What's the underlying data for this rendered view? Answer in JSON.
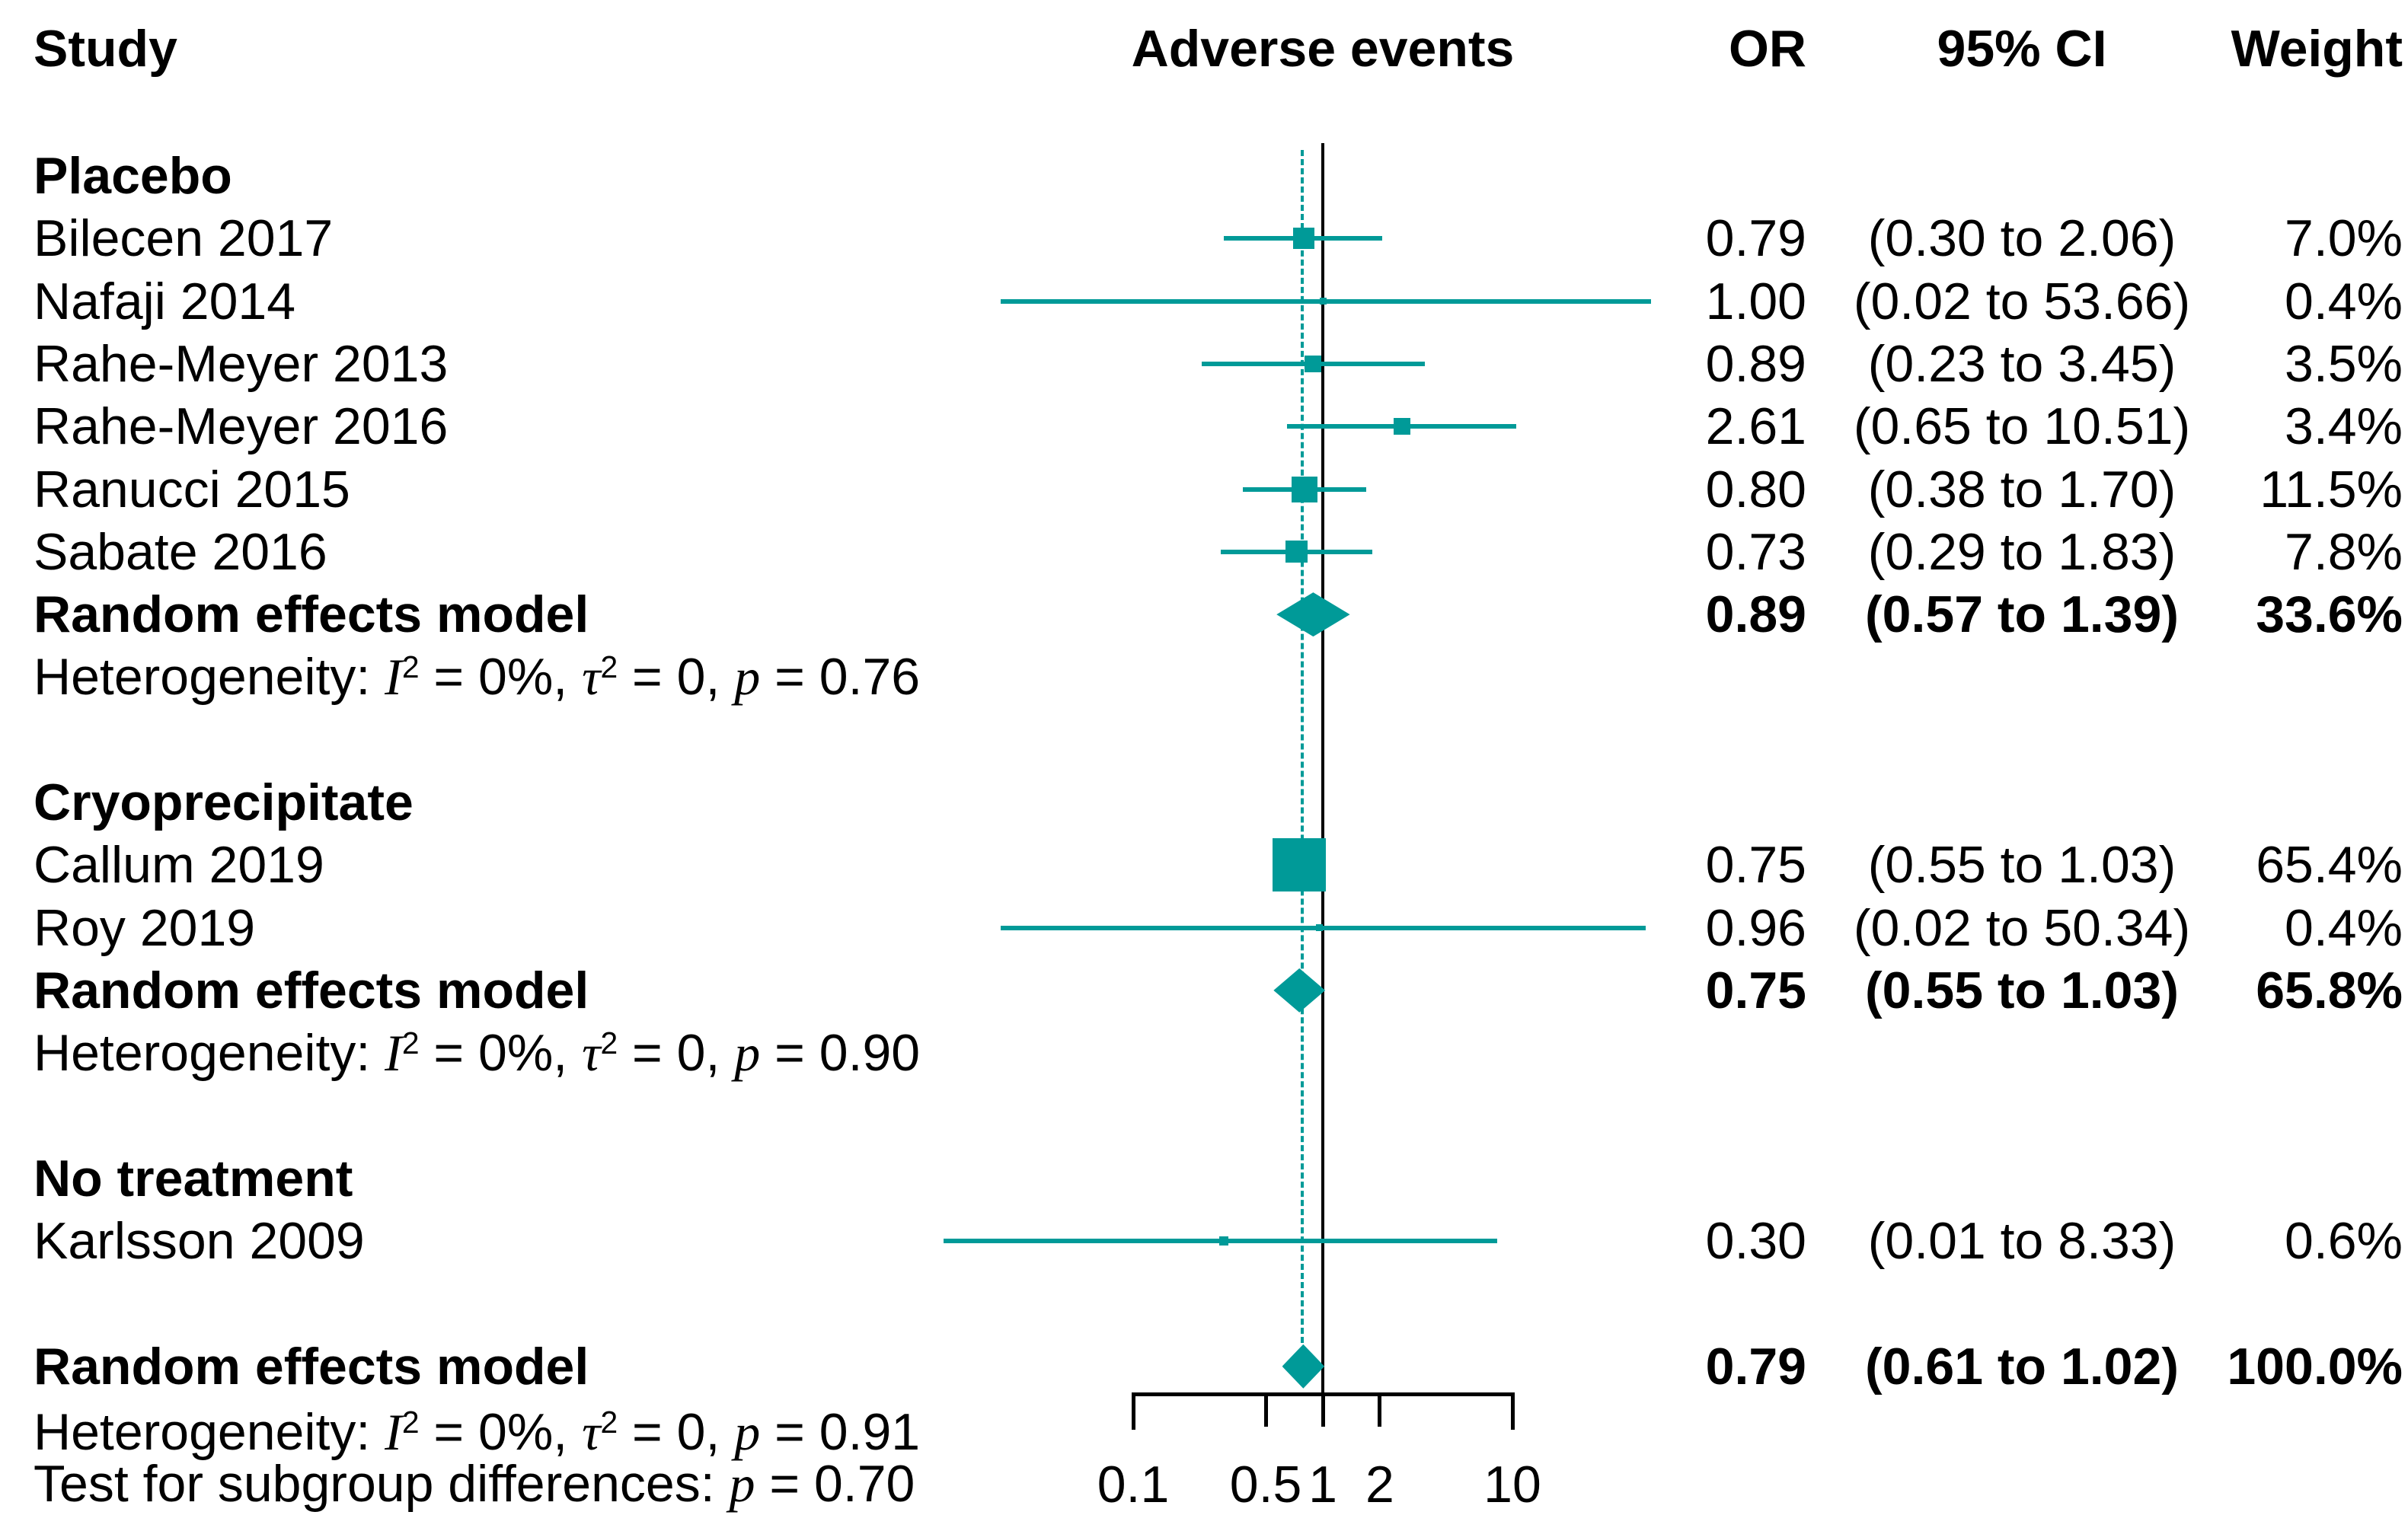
{
  "header": {
    "study": "Study",
    "adverse_events": "Adverse events",
    "or": "OR",
    "ci": "95% CI",
    "weight": "Weight"
  },
  "colors": {
    "marker_teal": "#009A98",
    "line_black": "#000000",
    "text_black": "#000000"
  },
  "chart_data": {
    "type": "forest",
    "effect_measure": "OR",
    "scale": "log",
    "xlim": [
      0.1,
      10
    ],
    "axis": {
      "tick_values": [
        0.1,
        0.5,
        1,
        2,
        10
      ],
      "tick_labels": [
        "0.1",
        "0.5",
        "1",
        "2",
        "10"
      ],
      "reference_value": 1,
      "pooled_value": 0.79
    },
    "rows": [
      {
        "kind": "group",
        "label": "Placebo"
      },
      {
        "kind": "study",
        "label": "Bilecen 2017",
        "or": 0.79,
        "ci_low": 0.3,
        "ci_high": 2.06,
        "or_text": "0.79",
        "ci_text": "(0.30 to 2.06)",
        "weight_text": "7.0%",
        "weight": 7.0,
        "marker_size": 28
      },
      {
        "kind": "study",
        "label": "Nafaji 2014",
        "or": 1.0,
        "ci_low": 0.02,
        "ci_high": 53.66,
        "or_text": "1.00",
        "ci_text": "(0.02 to 53.66)",
        "weight_text": "0.4%",
        "weight": 0.4,
        "marker_size": 9
      },
      {
        "kind": "study",
        "label": "Rahe-Meyer 2013",
        "or": 0.89,
        "ci_low": 0.23,
        "ci_high": 3.45,
        "or_text": "0.89",
        "ci_text": "(0.23 to 3.45)",
        "weight_text": "3.5%",
        "weight": 3.5,
        "marker_size": 22
      },
      {
        "kind": "study",
        "label": "Rahe-Meyer 2016",
        "or": 2.61,
        "ci_low": 0.65,
        "ci_high": 10.51,
        "or_text": "2.61",
        "ci_text": "(0.65 to 10.51)",
        "weight_text": "3.4%",
        "weight": 3.4,
        "marker_size": 22
      },
      {
        "kind": "study",
        "label": "Ranucci 2015",
        "or": 0.8,
        "ci_low": 0.38,
        "ci_high": 1.7,
        "or_text": "0.80",
        "ci_text": "(0.38 to 1.70)",
        "weight_text": "11.5%",
        "weight": 11.5,
        "marker_size": 34
      },
      {
        "kind": "study",
        "label": "Sabate 2016",
        "or": 0.73,
        "ci_low": 0.29,
        "ci_high": 1.83,
        "or_text": "0.73",
        "ci_text": "(0.29 to 1.83)",
        "weight_text": "7.8%",
        "weight": 7.8,
        "marker_size": 29
      },
      {
        "kind": "summary",
        "label": "Random effects model",
        "or": 0.89,
        "ci_low": 0.57,
        "ci_high": 1.39,
        "or_text": "0.89",
        "ci_text": "(0.57 to 1.39)",
        "weight_text": "33.6%"
      },
      {
        "kind": "note",
        "segments": [
          {
            "t": "Heterogeneity: "
          },
          {
            "t": "I",
            "i": true
          },
          {
            "t": "2",
            "sup": true
          },
          {
            "t": " = 0%, "
          },
          {
            "t": "τ",
            "i": true
          },
          {
            "t": "2",
            "sup": true
          },
          {
            "t": " = 0, "
          },
          {
            "t": "p",
            "i": true
          },
          {
            "t": " = 0.76"
          }
        ]
      },
      {
        "kind": "spacer"
      },
      {
        "kind": "group",
        "label": "Cryoprecipitate"
      },
      {
        "kind": "study",
        "label": "Callum 2019",
        "or": 0.75,
        "ci_low": 0.55,
        "ci_high": 1.03,
        "or_text": "0.75",
        "ci_text": "(0.55 to 1.03)",
        "weight_text": "65.4%",
        "weight": 65.4,
        "marker_size": 70
      },
      {
        "kind": "study",
        "label": "Roy 2019",
        "or": 0.96,
        "ci_low": 0.02,
        "ci_high": 50.34,
        "or_text": "0.96",
        "ci_text": "(0.02 to 50.34)",
        "weight_text": "0.4%",
        "weight": 0.4,
        "marker_size": 9
      },
      {
        "kind": "summary",
        "label": "Random effects model",
        "or": 0.75,
        "ci_low": 0.55,
        "ci_high": 1.03,
        "or_text": "0.75",
        "ci_text": "(0.55 to 1.03)",
        "weight_text": "65.8%"
      },
      {
        "kind": "note",
        "segments": [
          {
            "t": "Heterogeneity: "
          },
          {
            "t": "I",
            "i": true
          },
          {
            "t": "2",
            "sup": true
          },
          {
            "t": " = 0%, "
          },
          {
            "t": "τ",
            "i": true
          },
          {
            "t": "2",
            "sup": true
          },
          {
            "t": " = 0, "
          },
          {
            "t": "p",
            "i": true
          },
          {
            "t": " = 0.90"
          }
        ]
      },
      {
        "kind": "spacer"
      },
      {
        "kind": "group",
        "label": "No treatment"
      },
      {
        "kind": "study",
        "label": "Karlsson 2009",
        "or": 0.3,
        "ci_low": 0.01,
        "ci_high": 8.33,
        "or_text": "0.30",
        "ci_text": "(0.01 to 8.33)",
        "weight_text": "0.6%",
        "weight": 0.6,
        "marker_size": 12
      },
      {
        "kind": "spacer"
      },
      {
        "kind": "summary",
        "label": "Random effects model",
        "or": 0.79,
        "ci_low": 0.61,
        "ci_high": 1.02,
        "or_text": "0.79",
        "ci_text": "(0.61 to 1.02)",
        "weight_text": "100.0%"
      },
      {
        "kind": "note",
        "dy": 4,
        "segments": [
          {
            "t": "Heterogeneity: "
          },
          {
            "t": "I",
            "i": true
          },
          {
            "t": "2",
            "sup": true
          },
          {
            "t": " = 0%, "
          },
          {
            "t": "τ",
            "i": true
          },
          {
            "t": "2",
            "sup": true
          },
          {
            "t": " = 0, "
          },
          {
            "t": "p",
            "i": true
          },
          {
            "t": " = 0.91"
          }
        ]
      },
      {
        "kind": "note",
        "dy": -10,
        "segments": [
          {
            "t": "Test for subgroup differences:  "
          },
          {
            "t": "p",
            "i": true
          },
          {
            "t": " = 0.70"
          }
        ]
      }
    ]
  }
}
